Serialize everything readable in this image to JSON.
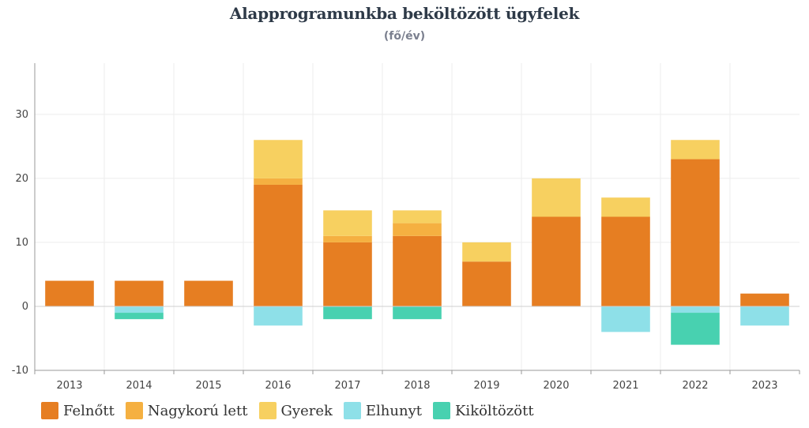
{
  "chart_data": {
    "type": "bar",
    "stacked": true,
    "title": "Alapprogramunkba beköltözött ügyfelek",
    "subtitle": "(fő/év)",
    "xlabel": "",
    "ylabel": "",
    "ylim": [
      -10,
      38
    ],
    "yticks": [
      -10,
      0,
      10,
      20,
      30
    ],
    "grid": true,
    "legend_position": "bottom-left",
    "categories": [
      "2013",
      "2014",
      "2015",
      "2016",
      "2017",
      "2018",
      "2019",
      "2020",
      "2021",
      "2022",
      "2023"
    ],
    "series": [
      {
        "name": "Felnőtt",
        "color": "#e67e22",
        "values": [
          4,
          4,
          4,
          19,
          10,
          11,
          7,
          14,
          14,
          23,
          2
        ]
      },
      {
        "name": "Nagykorú lett",
        "color": "#f5b041",
        "values": [
          0,
          0,
          0,
          1,
          1,
          2,
          0,
          0,
          0,
          0,
          0
        ]
      },
      {
        "name": "Gyerek",
        "color": "#f7d060",
        "values": [
          0,
          0,
          0,
          6,
          4,
          2,
          3,
          6,
          3,
          3,
          0
        ]
      },
      {
        "name": "Elhunyt",
        "color": "#8ee0e8",
        "values": [
          0,
          -1,
          0,
          -3,
          0,
          0,
          0,
          0,
          -4,
          -1,
          -3
        ]
      },
      {
        "name": "Kiköltözött",
        "color": "#48d1b0",
        "values": [
          0,
          -1,
          0,
          0,
          -2,
          -2,
          0,
          0,
          0,
          -5,
          0
        ]
      }
    ]
  }
}
